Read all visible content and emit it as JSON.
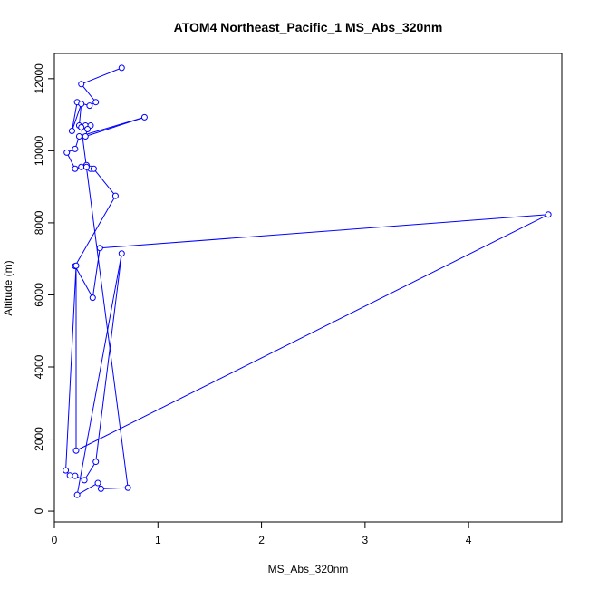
{
  "chart_data": {
    "type": "scatter",
    "title": "ATOM4 Northeast_Pacific_1 MS_Abs_320nm",
    "xlabel": "MS_Abs_320nm",
    "ylabel": "Altitude (m)",
    "xlim": [
      0,
      4.9
    ],
    "ylim": [
      -300,
      12700
    ],
    "x_ticks": [
      0,
      1,
      2,
      3,
      4
    ],
    "y_ticks": [
      0,
      2000,
      4000,
      6000,
      8000,
      10000,
      12000
    ],
    "grid": false,
    "connected": true,
    "marker": "open-circle",
    "color": "#0000ff",
    "series": [
      {
        "points": [
          {
            "x": 0.65,
            "y": 12300
          },
          {
            "x": 0.26,
            "y": 11850
          },
          {
            "x": 0.4,
            "y": 11350
          },
          {
            "x": 0.34,
            "y": 11250
          },
          {
            "x": 0.22,
            "y": 11350
          },
          {
            "x": 0.17,
            "y": 10550
          },
          {
            "x": 0.26,
            "y": 11300
          },
          {
            "x": 0.24,
            "y": 10700
          },
          {
            "x": 0.3,
            "y": 10700
          },
          {
            "x": 0.35,
            "y": 10700
          },
          {
            "x": 0.32,
            "y": 10600
          },
          {
            "x": 0.3,
            "y": 10400
          },
          {
            "x": 0.87,
            "y": 10930
          },
          {
            "x": 0.24,
            "y": 10400
          },
          {
            "x": 0.2,
            "y": 10050
          },
          {
            "x": 0.12,
            "y": 9950
          },
          {
            "x": 0.2,
            "y": 9500
          },
          {
            "x": 0.26,
            "y": 9550
          },
          {
            "x": 0.31,
            "y": 9600
          },
          {
            "x": 0.35,
            "y": 9500
          },
          {
            "x": 0.31,
            "y": 9550
          },
          {
            "x": 0.38,
            "y": 9500
          },
          {
            "x": 0.59,
            "y": 8750
          },
          {
            "x": 0.2,
            "y": 6800
          },
          {
            "x": 0.37,
            "y": 5920
          },
          {
            "x": 0.44,
            "y": 7300
          },
          {
            "x": 4.77,
            "y": 8230
          },
          {
            "x": 0.21,
            "y": 1680
          },
          {
            "x": 0.21,
            "y": 6810
          },
          {
            "x": 0.11,
            "y": 1130
          },
          {
            "x": 0.15,
            "y": 990
          },
          {
            "x": 0.2,
            "y": 980
          },
          {
            "x": 0.29,
            "y": 860
          },
          {
            "x": 0.4,
            "y": 1370
          },
          {
            "x": 0.65,
            "y": 7150
          },
          {
            "x": 0.22,
            "y": 450
          },
          {
            "x": 0.42,
            "y": 780
          },
          {
            "x": 0.45,
            "y": 620
          },
          {
            "x": 0.71,
            "y": 650
          },
          {
            "x": 0.26,
            "y": 10650
          }
        ]
      }
    ]
  }
}
